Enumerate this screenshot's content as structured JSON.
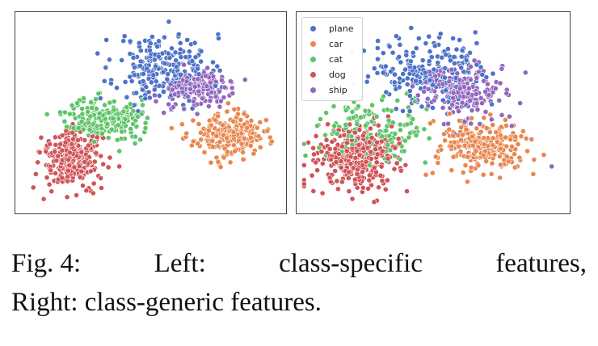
{
  "colors": {
    "plane": "#4c72c9",
    "car": "#e8874f",
    "cat": "#5fc468",
    "dog": "#d05357",
    "ship": "#9168bd"
  },
  "caption": {
    "line1": [
      "Fig. 4:",
      "Left:",
      "class-specific",
      "features,"
    ],
    "line2": "Right: class-generic features."
  },
  "chart_data": [
    {
      "type": "scatter",
      "panel": "left",
      "title": "",
      "xlabel": "",
      "ylabel": "",
      "xlim": [
        0,
        100
      ],
      "ylim": [
        0,
        100
      ],
      "ticks": "none",
      "legend": false,
      "series": [
        {
          "key": "plane",
          "cx": 55,
          "cy": 73,
          "sx": 9,
          "sy": 9,
          "n": 230,
          "seed": 11,
          "extra": [
            [
              33,
              88
            ],
            [
              40,
              90
            ],
            [
              64,
              88
            ],
            [
              74,
              72
            ]
          ]
        },
        {
          "key": "car",
          "cx": 80,
          "cy": 38,
          "sx": 6.5,
          "sy": 5.5,
          "n": 230,
          "seed": 23,
          "extra": [
            [
              58,
              42
            ],
            [
              62,
              44
            ],
            [
              92,
              32
            ],
            [
              96,
              34
            ],
            [
              68,
              34
            ]
          ]
        },
        {
          "key": "cat",
          "cx": 32,
          "cy": 47,
          "sx": 7,
          "sy": 5.5,
          "n": 200,
          "seed": 37,
          "extra": [
            [
              38,
              30
            ],
            [
              44,
              34
            ],
            [
              48,
              42
            ],
            [
              22,
              54
            ],
            [
              30,
              60
            ],
            [
              46,
              36
            ]
          ]
        },
        {
          "key": "dog",
          "cx": 20,
          "cy": 27,
          "sx": 5.5,
          "sy": 7,
          "n": 300,
          "seed": 41,
          "extra": [
            [
              5,
              11
            ],
            [
              9,
              5
            ],
            [
              12,
              9
            ],
            [
              18,
              6
            ],
            [
              28,
              8
            ],
            [
              24,
              12
            ],
            [
              38,
              22
            ],
            [
              6,
              18
            ]
          ]
        },
        {
          "key": "ship",
          "cx": 67,
          "cy": 63,
          "sx": 7,
          "sy": 4.8,
          "n": 200,
          "seed": 53,
          "extra": [
            [
              52,
              56
            ],
            [
              55,
              50
            ],
            [
              78,
              58
            ],
            [
              81,
              66
            ]
          ]
        }
      ]
    },
    {
      "type": "scatter",
      "panel": "right",
      "title": "",
      "xlabel": "",
      "ylabel": "",
      "xlim": [
        0,
        100
      ],
      "ylim": [
        0,
        100
      ],
      "ticks": "none",
      "legend": "top-left",
      "legend_entries": [
        "plane",
        "car",
        "cat",
        "dog",
        "ship"
      ],
      "series": [
        {
          "key": "plane",
          "cx": 48,
          "cy": 72,
          "sx": 11,
          "sy": 9,
          "n": 220,
          "seed": 61,
          "extra": [
            [
              29,
              78
            ],
            [
              36,
              90
            ],
            [
              60,
              88
            ],
            [
              66,
              92
            ]
          ]
        },
        {
          "key": "car",
          "cx": 69,
          "cy": 33,
          "sx": 9,
          "sy": 7,
          "n": 240,
          "seed": 71,
          "extra": [
            [
              57,
              20
            ],
            [
              63,
              14
            ],
            [
              82,
              22
            ],
            [
              88,
              18
            ],
            [
              92,
              28
            ],
            [
              52,
              30
            ]
          ]
        },
        {
          "key": "cat",
          "cx": 27,
          "cy": 42,
          "sx": 10,
          "sy": 8,
          "n": 150,
          "seed": 79,
          "extra": [
            [
              40,
              60
            ],
            [
              43,
              56
            ],
            [
              44,
              40
            ],
            [
              47,
              24
            ],
            [
              39,
              30
            ]
          ]
        },
        {
          "key": "dog",
          "cx": 21,
          "cy": 27,
          "sx": 8,
          "sy": 8.5,
          "n": 320,
          "seed": 83,
          "extra": [
            [
              8,
              8
            ],
            [
              6,
              20
            ],
            [
              10,
              44
            ],
            [
              32,
              10
            ],
            [
              38,
              20
            ]
          ]
        },
        {
          "key": "ship",
          "cx": 59,
          "cy": 61,
          "sx": 8.5,
          "sy": 7.5,
          "n": 200,
          "seed": 97,
          "extra": [
            [
              74,
              66
            ],
            [
              78,
              62
            ],
            [
              83,
              55
            ],
            [
              95,
              22
            ],
            [
              79,
              48
            ]
          ]
        }
      ]
    }
  ]
}
